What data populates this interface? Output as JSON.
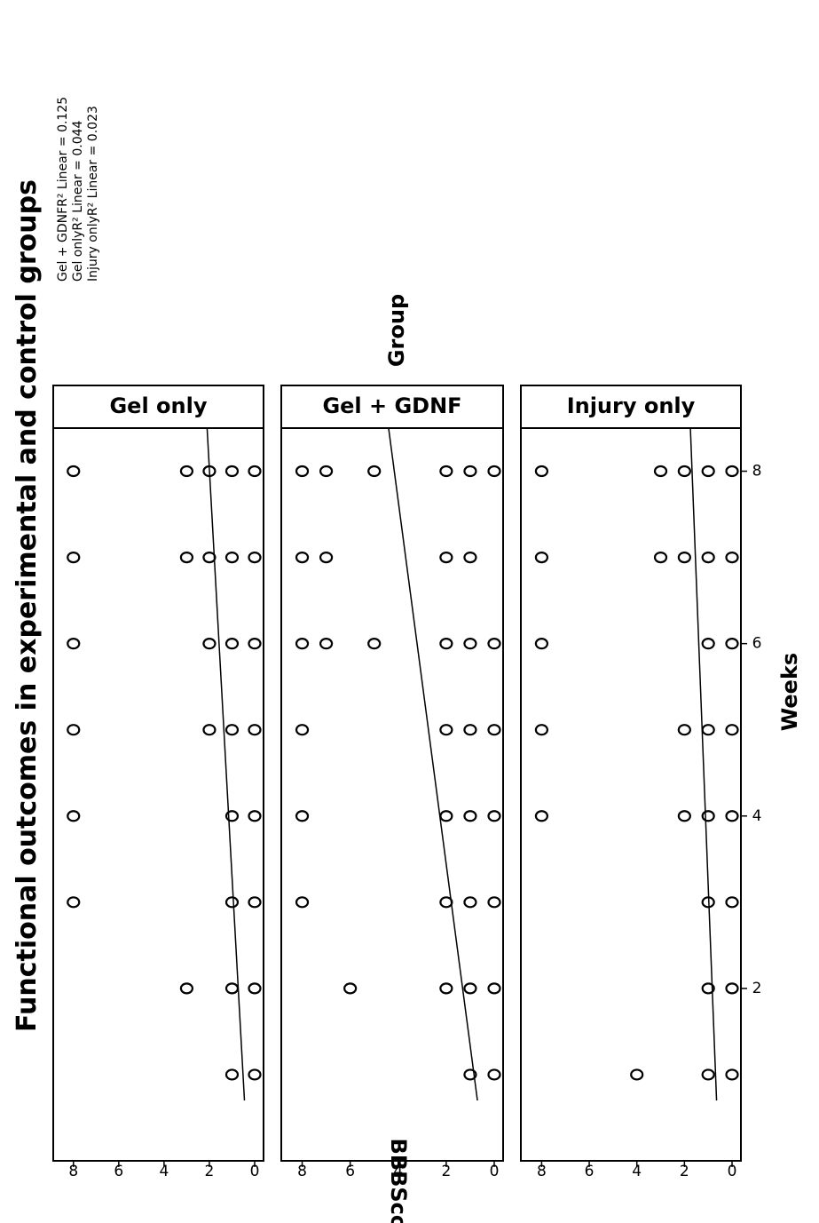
{
  "chart_data": {
    "type": "scatter",
    "title": "Functional outcomes in experimental and control groups",
    "legend": [
      "Gel + GDNFR² Linear = 0.125",
      "Gel onlyR² Linear = 0.044",
      "Injury onlyR² Linear = 0.023"
    ],
    "group_label": "Group",
    "xlabel": "Weeks",
    "ylabel": "BBBScore",
    "xlim": [
      0,
      8.5
    ],
    "ylim": [
      0,
      8.5
    ],
    "xticks": [
      "2",
      "4",
      "6",
      "8"
    ],
    "yticks": [
      "0",
      "2",
      "4",
      "6",
      "8"
    ],
    "panels": [
      {
        "name": "Gel only",
        "points": [
          [
            1,
            0
          ],
          [
            1,
            1
          ],
          [
            2,
            0
          ],
          [
            2,
            1
          ],
          [
            2,
            3
          ],
          [
            3,
            0
          ],
          [
            3,
            1
          ],
          [
            3,
            8
          ],
          [
            4,
            0
          ],
          [
            4,
            1
          ],
          [
            4,
            8
          ],
          [
            5,
            0
          ],
          [
            5,
            1
          ],
          [
            5,
            2
          ],
          [
            5,
            8
          ],
          [
            6,
            0
          ],
          [
            6,
            1
          ],
          [
            6,
            2
          ],
          [
            6,
            8
          ],
          [
            7,
            0
          ],
          [
            7,
            1
          ],
          [
            7,
            2
          ],
          [
            7,
            3
          ],
          [
            7,
            8
          ],
          [
            8,
            0
          ],
          [
            8,
            1
          ],
          [
            8,
            2
          ],
          [
            8,
            3
          ],
          [
            8,
            8
          ]
        ],
        "fit": [
          [
            0.7,
            0.45
          ],
          [
            8.5,
            2.1
          ]
        ]
      },
      {
        "name": "Gel + GDNF",
        "points": [
          [
            1,
            0
          ],
          [
            1,
            1
          ],
          [
            2,
            0
          ],
          [
            2,
            1
          ],
          [
            2,
            2
          ],
          [
            2,
            6
          ],
          [
            3,
            0
          ],
          [
            3,
            1
          ],
          [
            3,
            2
          ],
          [
            3,
            8
          ],
          [
            4,
            0
          ],
          [
            4,
            1
          ],
          [
            4,
            2
          ],
          [
            4,
            8
          ],
          [
            5,
            0
          ],
          [
            5,
            1
          ],
          [
            5,
            2
          ],
          [
            5,
            8
          ],
          [
            6,
            0
          ],
          [
            6,
            1
          ],
          [
            6,
            2
          ],
          [
            6,
            5
          ],
          [
            6,
            7
          ],
          [
            6,
            8
          ],
          [
            7,
            1
          ],
          [
            7,
            2
          ],
          [
            7,
            7
          ],
          [
            7,
            8
          ],
          [
            8,
            0
          ],
          [
            8,
            1
          ],
          [
            8,
            2
          ],
          [
            8,
            5
          ],
          [
            8,
            7
          ],
          [
            8,
            8
          ]
        ],
        "fit": [
          [
            0.7,
            0.7
          ],
          [
            8.5,
            4.4
          ]
        ]
      },
      {
        "name": "Injury only",
        "points": [
          [
            1,
            0
          ],
          [
            1,
            1
          ],
          [
            1,
            4
          ],
          [
            2,
            0
          ],
          [
            2,
            1
          ],
          [
            3,
            0
          ],
          [
            3,
            1
          ],
          [
            4,
            0
          ],
          [
            4,
            1
          ],
          [
            4,
            2
          ],
          [
            4,
            8
          ],
          [
            5,
            0
          ],
          [
            5,
            1
          ],
          [
            5,
            2
          ],
          [
            5,
            8
          ],
          [
            6,
            0
          ],
          [
            6,
            1
          ],
          [
            6,
            8
          ],
          [
            7,
            0
          ],
          [
            7,
            1
          ],
          [
            7,
            2
          ],
          [
            7,
            3
          ],
          [
            7,
            8
          ],
          [
            8,
            0
          ],
          [
            8,
            1
          ],
          [
            8,
            2
          ],
          [
            8,
            3
          ],
          [
            8,
            8
          ]
        ],
        "fit": [
          [
            0.7,
            0.65
          ],
          [
            8.5,
            1.75
          ]
        ]
      }
    ]
  }
}
